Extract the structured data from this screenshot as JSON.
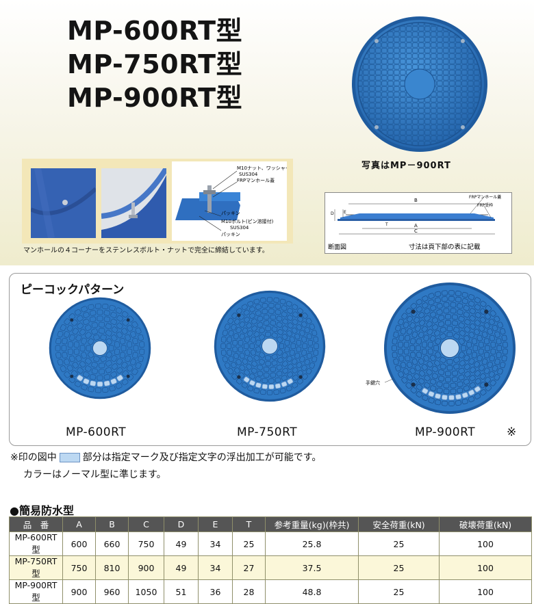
{
  "header": {
    "titles": [
      "MP-600RT型",
      "MP-750RT型",
      "MP-900RT型"
    ],
    "hero_caption": "写真はMP－900RT"
  },
  "photos": {
    "caption": "マンホールの４コーナーをステンレスボルト・ナットで完全に締結しています。",
    "diagram_labels": {
      "nut_washer": "M10ナット、ワッシャー",
      "sus_top": "SUS304",
      "frp_cover": "FRPマンホール蓋",
      "packing_top": "パッキン",
      "bolt": "M10ボルト(ピン溶接付)",
      "sus_bottom": "SUS304",
      "packing_bottom": "パッキン"
    }
  },
  "section_diagram": {
    "frp_cover": "FRPマンホール蓋",
    "frp_frame": "FRP受枠",
    "label_b": "B",
    "label_a": "A",
    "label_c": "C",
    "label_d": "D",
    "label_e": "E",
    "label_t": "T",
    "caption_left": "断面図",
    "caption_right": "寸法は頁下部の表に記載"
  },
  "pattern": {
    "title": "ピーコックパターン",
    "covers": [
      "MP-600RT",
      "MP-750RT",
      "MP-900RT"
    ],
    "mark": "※",
    "key_hole": "手鍵穴"
  },
  "notes": {
    "line1_before": "※印の図中",
    "line1_after": "部分は指定マーク及び指定文字の浮出加工が可能です。",
    "line2": "カラーはノーマル型に準じます。"
  },
  "table": {
    "title": "●簡易防水型",
    "headers": [
      "品　番",
      "A",
      "B",
      "C",
      "D",
      "E",
      "T",
      "参考重量(kg)(枠共)",
      "安全荷重(kN)",
      "破壊荷重(kN)"
    ],
    "rows": [
      [
        "MP-600RT型",
        "600",
        "660",
        "750",
        "49",
        "34",
        "25",
        "25.8",
        "25",
        "100"
      ],
      [
        "MP-750RT型",
        "750",
        "810",
        "900",
        "49",
        "34",
        "27",
        "37.5",
        "25",
        "100"
      ],
      [
        "MP-900RT型",
        "900",
        "960",
        "1050",
        "51",
        "36",
        "28",
        "48.8",
        "25",
        "100"
      ]
    ]
  },
  "colors": {
    "cover_blue": "#2f79c4",
    "cover_dark": "#1f5b9e",
    "highlight": "#bcd8f2",
    "table_header": "#555555"
  }
}
